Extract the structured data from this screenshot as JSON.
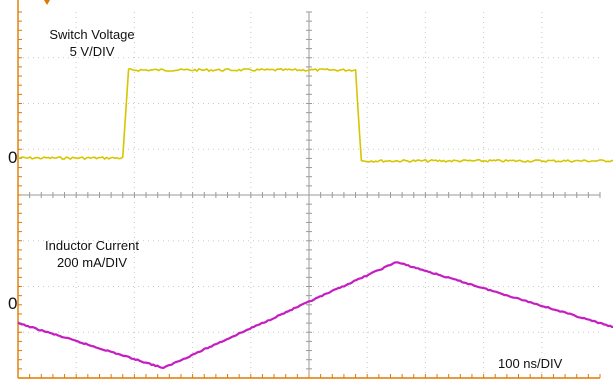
{
  "chart_data": {
    "type": "line",
    "time_scale": "100 ns/DIV",
    "time_divisions": 10,
    "grid": true,
    "colors": {
      "switch_voltage": "#d6c600",
      "inductor_current": "#c51ec0",
      "grid": "#c9c9c9",
      "frame": "#e07800"
    },
    "series": [
      {
        "name": "Switch Voltage",
        "scale": "5 V/DIV",
        "zero_label": "0",
        "unit": "V",
        "x_ns": [
          0,
          180,
          190,
          580,
          590,
          1000
        ],
        "y_values": [
          0,
          0,
          12.2,
          12.2,
          -0.4,
          -0.4
        ],
        "period_ns": 1000,
        "cycles": 2
      },
      {
        "name": "Inductor Current",
        "scale": "200 mA/DIV",
        "zero_label": "0",
        "unit": "mA",
        "x_ns": [
          0,
          250,
          650,
          1000
        ],
        "y_values": [
          -50,
          -270,
          250,
          -50
        ],
        "period_ns": 1000,
        "cycles": 2
      }
    ]
  }
}
